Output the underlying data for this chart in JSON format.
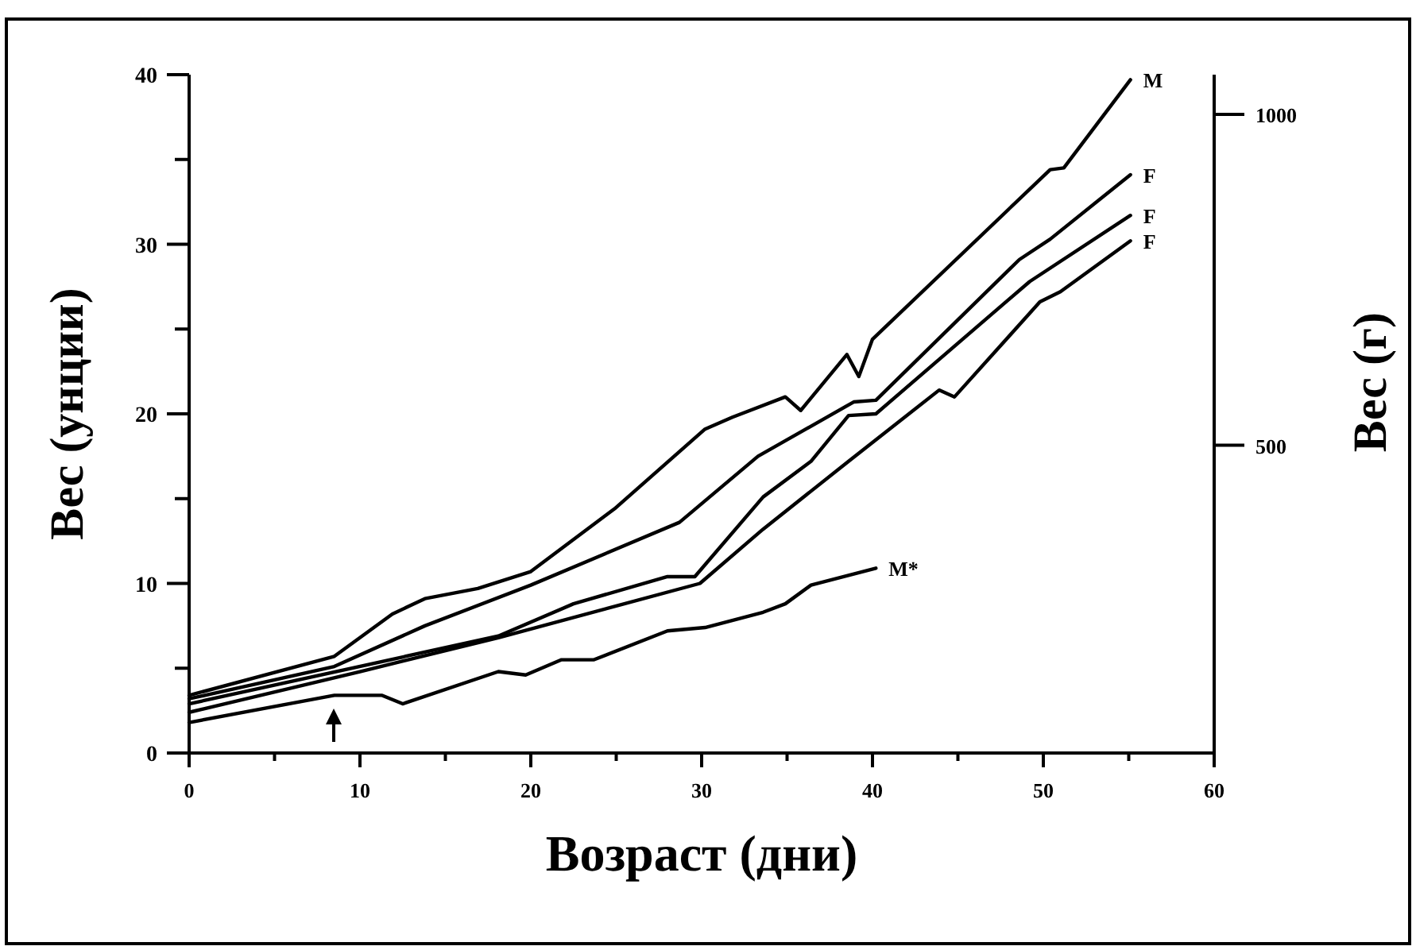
{
  "chart_data": {
    "type": "line",
    "xlabel": "Возраст (дни)",
    "ylabel": "Вес (унции)",
    "y2label": "Вес (г)",
    "xlim": [
      0,
      60
    ],
    "xticks": [
      0,
      {
        "value": 5,
        "label": null
      },
      10,
      {
        "value": 15,
        "label": null
      },
      20,
      {
        "value": 25,
        "label": null
      },
      30,
      {
        "value": 35,
        "label": null
      },
      40,
      {
        "value": 45,
        "label": null
      },
      50,
      {
        "value": 55,
        "label": null
      },
      60
    ],
    "ylim": [
      0,
      40
    ],
    "yticks": [
      0,
      {
        "value": 5,
        "label": null
      },
      10,
      {
        "value": 15,
        "label": null
      },
      20,
      {
        "value": 25,
        "label": null
      },
      30,
      {
        "value": 35,
        "label": null
      },
      40
    ],
    "y2lim": [
      35,
      1060
    ],
    "y2ticks": [
      500,
      1000
    ],
    "series": [
      {
        "name": "M",
        "color": "#000000",
        "x": [
          0,
          8.5,
          11.9,
          13.8,
          16.9,
          20,
          24.9,
          30.2,
          31.8,
          34.9,
          35.8,
          38.5,
          39.2,
          40,
          50.4,
          51.2,
          55.1
        ],
        "values": [
          3.4,
          5.7,
          8.2,
          9.1,
          9.7,
          10.7,
          14.4,
          19.1,
          19.8,
          21,
          20.2,
          23.5,
          22.2,
          24.4,
          34.4,
          34.5,
          39.7
        ]
      },
      {
        "name": "F",
        "color": "#000000",
        "x": [
          0,
          8.5,
          13.8,
          20,
          28.7,
          33.3,
          38.9,
          40.2,
          48.6,
          50.4,
          55.1
        ],
        "values": [
          3.2,
          5.1,
          7.5,
          9.9,
          13.6,
          17.5,
          20.7,
          20.8,
          29.1,
          30.3,
          34.1
        ]
      },
      {
        "name": "F",
        "color": "#000000",
        "x": [
          0,
          18.1,
          22.5,
          28,
          29.6,
          33.6,
          36.4,
          38.6,
          40.2,
          49.2,
          55.1
        ],
        "values": [
          2.9,
          6.9,
          8.8,
          10.4,
          10.4,
          15.1,
          17.2,
          19.9,
          20,
          27.8,
          31.7
        ]
      },
      {
        "name": "F",
        "color": "#000000",
        "x": [
          0,
          10,
          18.1,
          29.9,
          33.6,
          38.6,
          43.9,
          44.8,
          49.8,
          51,
          55.1
        ],
        "values": [
          2.4,
          4.8,
          6.8,
          10,
          13.2,
          17.2,
          21.4,
          21,
          26.6,
          27.2,
          30.2
        ]
      },
      {
        "name": "M*",
        "color": "#000000",
        "x": [
          0,
          8.5,
          11.3,
          12.5,
          18.1,
          19.7,
          21.8,
          23.7,
          28,
          30.2,
          33.6,
          34.9,
          36.4,
          40.2
        ],
        "values": [
          1.8,
          3.4,
          3.4,
          2.9,
          4.8,
          4.6,
          5.5,
          5.5,
          7.2,
          7.4,
          8.3,
          8.8,
          9.9,
          10.9
        ]
      }
    ]
  }
}
